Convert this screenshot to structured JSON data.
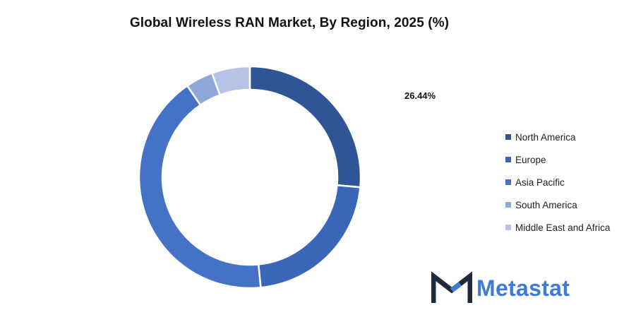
{
  "chart_data": {
    "type": "pie",
    "title": "Global Wireless RAN Market, By Region, 2025 (%)",
    "donut": true,
    "categories": [
      "North America",
      "Europe",
      "Asia Pacific",
      "South America",
      "Middle East and Africa"
    ],
    "values": [
      26.44,
      22.0,
      42.0,
      4.0,
      5.56
    ],
    "colors": [
      "#2f5597",
      "#3a66b8",
      "#4472c4",
      "#8fa7d9",
      "#b4c3e6"
    ],
    "data_labels": [
      "26.44%"
    ],
    "legend_position": "right"
  },
  "logo": {
    "text": "Metastat",
    "color": "#3e7bd6"
  }
}
